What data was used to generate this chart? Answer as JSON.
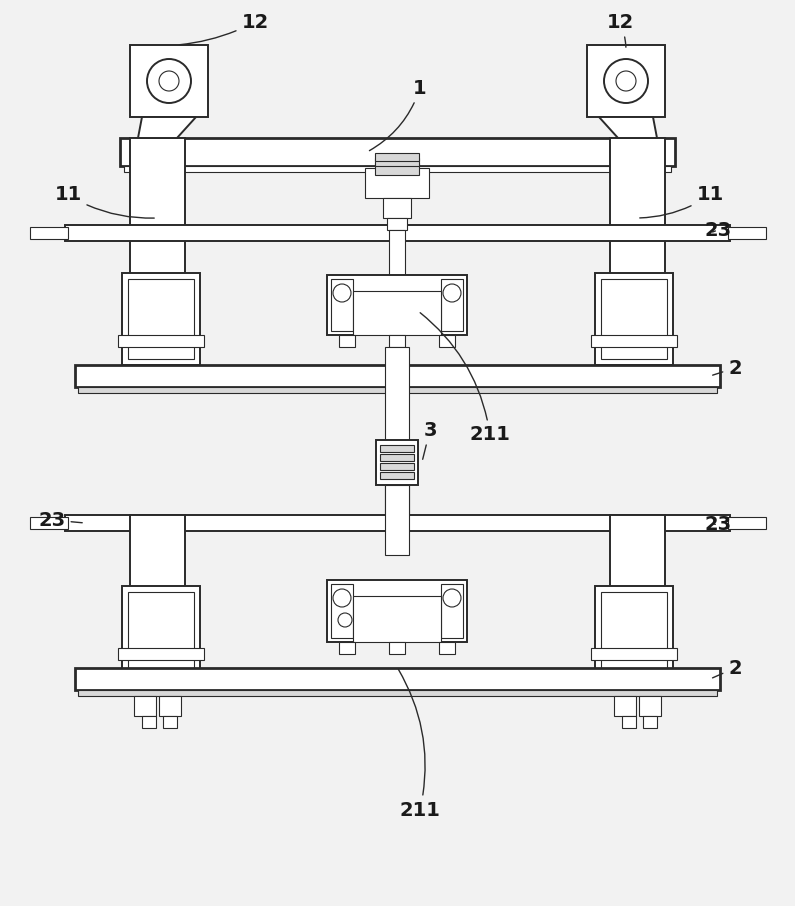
{
  "bg_color": "#f2f2f2",
  "line_color": "#2a2a2a",
  "white": "#ffffff",
  "gray_light": "#d8d8d8",
  "label_color": "#1a1a1a",
  "lw_main": 1.4,
  "lw_thin": 0.8,
  "lw_thick": 2.0
}
